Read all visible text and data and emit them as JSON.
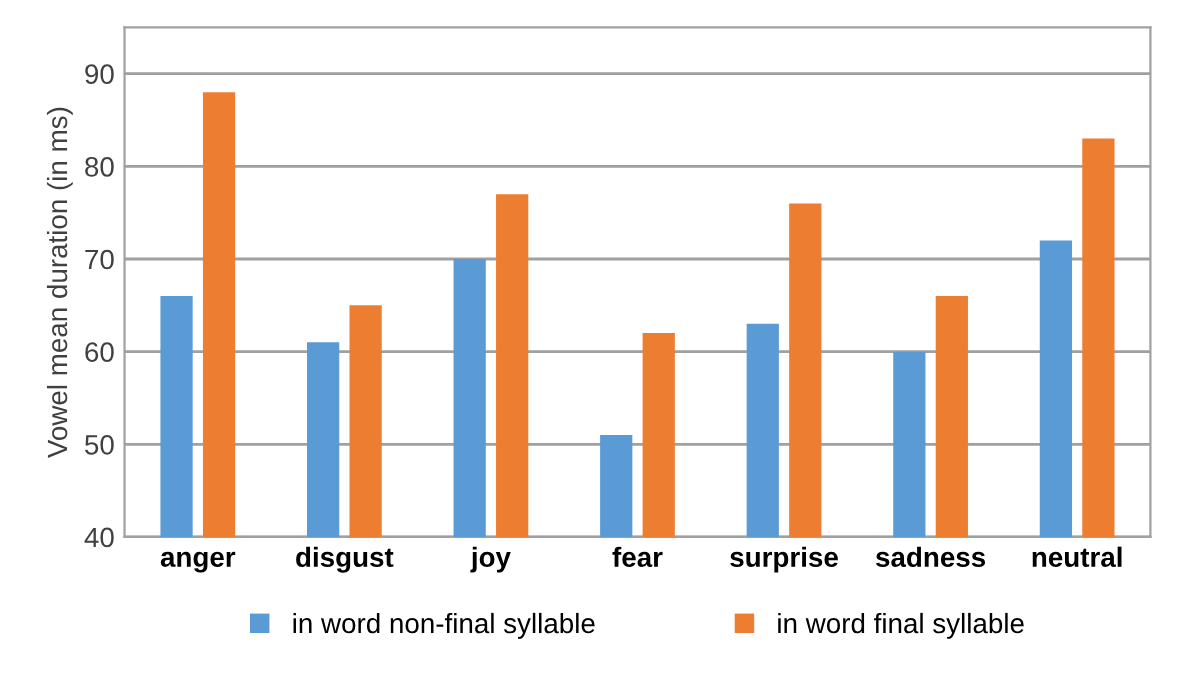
{
  "chart_data": {
    "type": "bar",
    "ylabel": "Vowel mean duration (in ms)",
    "categories": [
      "anger",
      "disgust",
      "joy",
      "fear",
      "surprise",
      "sadness",
      "neutral"
    ],
    "series": [
      {
        "name": "in word non-final syllable",
        "color": "#5b9bd5",
        "values": [
          66,
          61,
          70,
          51,
          63,
          60,
          72
        ]
      },
      {
        "name": "in word final syllable",
        "color": "#ed7d31",
        "values": [
          88,
          65,
          77,
          62,
          76,
          66,
          83
        ]
      }
    ],
    "ylim": [
      40,
      95
    ],
    "yticks": [
      40,
      50,
      60,
      70,
      80,
      90
    ],
    "grid": "y",
    "legend": "bottom"
  }
}
